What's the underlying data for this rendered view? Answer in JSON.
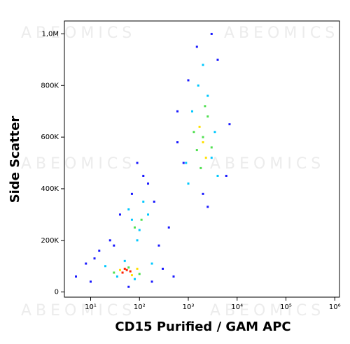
{
  "chart_data": {
    "type": "scatter",
    "xlabel": "CD15 Purified / GAM APC",
    "ylabel": "Side Scatter",
    "watermark": "ABEOMICS",
    "xscale": "log",
    "xlim": [
      2.9,
      1250000
    ],
    "ylim": [
      -20000,
      1050000
    ],
    "xticks": [
      {
        "value": 10,
        "label": "10¹"
      },
      {
        "value": 100,
        "label": "10²"
      },
      {
        "value": 1000,
        "label": "10³"
      },
      {
        "value": 10000,
        "label": "10⁴"
      },
      {
        "value": 100000,
        "label": "10⁵"
      },
      {
        "value": 1000000,
        "label": "10⁶"
      }
    ],
    "yticks": [
      0,
      {
        "value": 200000,
        "label": "200K"
      },
      {
        "value": 400000,
        "label": "400K"
      },
      {
        "value": 600000,
        "label": "600K"
      },
      {
        "value": 800000,
        "label": "800K"
      },
      {
        "value": 1000000,
        "label": "1,0M"
      }
    ],
    "series": [
      {
        "color": "#1a1aff",
        "x": [
          5,
          8,
          12,
          15,
          25,
          300,
          500,
          150,
          40,
          70,
          120,
          200,
          600,
          1500,
          4000,
          6000,
          3000,
          800,
          1000,
          2500,
          250,
          90,
          30,
          10,
          400,
          7000,
          2000,
          600,
          180,
          60
        ],
        "values": [
          60000,
          110000,
          130000,
          160000,
          200000,
          90000,
          60000,
          420000,
          300000,
          380000,
          450000,
          350000,
          700000,
          950000,
          900000,
          450000,
          1000000,
          500000,
          820000,
          330000,
          180000,
          500000,
          180000,
          40000,
          250000,
          650000,
          380000,
          580000,
          40000,
          20000
        ]
      },
      {
        "color": "#00c8ff",
        "x": [
          20,
          35,
          50,
          80,
          100,
          150,
          60,
          90,
          120,
          900,
          1200,
          1600,
          2500,
          3500,
          4000,
          1000,
          2000,
          3000,
          180,
          70
        ],
        "values": [
          100000,
          60000,
          120000,
          50000,
          240000,
          300000,
          320000,
          200000,
          350000,
          500000,
          700000,
          800000,
          760000,
          620000,
          450000,
          420000,
          880000,
          520000,
          110000,
          280000
        ]
      },
      {
        "color": "#50e050",
        "x": [
          30,
          60,
          100,
          110,
          80,
          1500,
          2000,
          2500,
          3000,
          1800,
          2200,
          1300
        ],
        "values": [
          75000,
          95000,
          70000,
          280000,
          250000,
          550000,
          600000,
          680000,
          560000,
          480000,
          720000,
          620000
        ]
      },
      {
        "color": "#ffe000",
        "x": [
          40,
          70,
          90,
          2000,
          2300,
          1700
        ],
        "values": [
          85000,
          65000,
          90000,
          580000,
          520000,
          640000
        ]
      },
      {
        "color": "#ff2000",
        "x": [
          45,
          55,
          65,
          50
        ],
        "values": [
          75000,
          85000,
          80000,
          90000
        ]
      }
    ]
  }
}
